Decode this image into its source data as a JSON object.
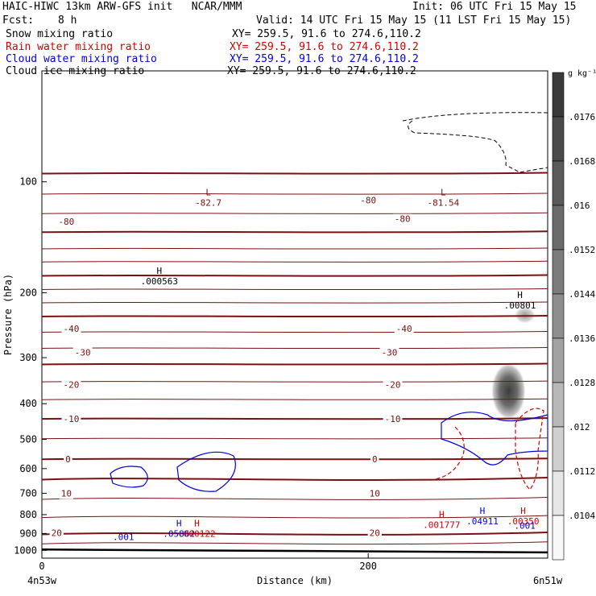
{
  "header": {
    "title_line1": "HAIC-HIWC 13km ARW-GFS init   NCAR/MMM",
    "fcst_label": "Fcst:",
    "fcst_value": "8 h",
    "init": "Init: 06 UTC Fri 15 May 15",
    "valid": "Valid: 14 UTC Fri 15 May 15 (11 LST Fri 15 May 15)",
    "fields": [
      {
        "name": "Snow mixing ratio",
        "xy": "XY= 259.5, 91.6 to 274.6,110.2",
        "color": "#000000"
      },
      {
        "name": "Rain water mixing ratio",
        "xy": "XY= 259.5, 91.6 to 274.6,110.2",
        "color": "#d40000"
      },
      {
        "name": "Cloud water mixing ratio",
        "xy": "XY= 259.5, 91.6 to 274.6,110.2",
        "color": "#0000dd"
      },
      {
        "name": "Cloud ice mixing ratio",
        "xy": "XY= 259.5, 91.6 to 274.6,110.2",
        "color": "#000000"
      }
    ]
  },
  "colors": {
    "temperature": "#7a1010",
    "rain": "#d40000",
    "cloud": "#0000dd",
    "snow": "#000000"
  },
  "chart_data": {
    "type": "heatmap",
    "xlabel": "Distance (km)",
    "ylabel": "Pressure (hPa)",
    "xlim": [
      0,
      310
    ],
    "x_ticks": [
      0,
      200
    ],
    "ylim": [
      1050,
      50
    ],
    "y_ticks": [
      100,
      200,
      300,
      400,
      500,
      600,
      700,
      800,
      900,
      1000
    ],
    "y_scale": "log",
    "x_endpoint_labels": {
      "left": "4n53w",
      "right": "6n51w"
    },
    "colorbar": {
      "unit": "g kg⁻¹",
      "levels": [
        ".0176",
        ".0168",
        ".016",
        ".0152",
        ".0144",
        ".0136",
        ".0128",
        ".012",
        ".0112",
        ".0104"
      ],
      "shades": [
        "#3a3a3a",
        "#4a4a4a",
        "#5a5a5a",
        "#6b6b6b",
        "#7c7c7c",
        "#8e8e8e",
        "#a2a2a2",
        "#b8b8b8",
        "#cfcfcf",
        "#e6e6e6",
        "#f8f8f8"
      ]
    },
    "temperature_contours": [
      {
        "value": "-80",
        "label_positions": [
          [
            15,
            128
          ],
          [
            200,
            112
          ],
          [
            221,
            126
          ]
        ]
      },
      {
        "value": "-40",
        "label_positions": [
          [
            18,
            250
          ],
          [
            222,
            250
          ]
        ]
      },
      {
        "value": "-30",
        "label_positions": [
          [
            25,
            290
          ],
          [
            213,
            290
          ]
        ]
      },
      {
        "value": "-20",
        "label_positions": [
          [
            18,
            355
          ],
          [
            215,
            355
          ]
        ]
      },
      {
        "value": "-10",
        "label_positions": [
          [
            18,
            440
          ],
          [
            215,
            440
          ]
        ]
      },
      {
        "value": "0",
        "label_positions": [
          [
            16,
            566
          ],
          [
            204,
            566
          ]
        ]
      },
      {
        "value": "10",
        "label_positions": [
          [
            15,
            700
          ],
          [
            204,
            700
          ]
        ]
      },
      {
        "value": "20",
        "label_positions": [
          [
            9,
            896
          ],
          [
            204,
            896
          ]
        ]
      }
    ],
    "extrema": [
      {
        "label": "L",
        "value": "-82.7",
        "x": 102,
        "p": 112,
        "color": "#7a1010"
      },
      {
        "label": "L",
        "value": "-81.54",
        "x": 246,
        "p": 112,
        "color": "#7a1010"
      },
      {
        "label": "H",
        "value": ".000563",
        "x": 72,
        "p": 183,
        "color": "#000000"
      },
      {
        "label": "H",
        "value": ".00801",
        "x": 293,
        "p": 213,
        "color": "#000000"
      },
      {
        "label": "H",
        "value": ".05862",
        "x": 84,
        "p": 888,
        "color": "#0000dd"
      },
      {
        "label": "",
        "value": ".001",
        "x": 50,
        "p": 905,
        "color": "#0000dd"
      },
      {
        "label": "H",
        "value": ".000122",
        "x": 95,
        "p": 888,
        "color": "#d40000"
      },
      {
        "label": "H",
        "value": ".001777",
        "x": 245,
        "p": 840,
        "color": "#d40000"
      },
      {
        "label": "H",
        "value": ".04911",
        "x": 270,
        "p": 820,
        "color": "#0000dd"
      },
      {
        "label": "H",
        "value": ".00350",
        "x": 295,
        "p": 820,
        "color": "#d40000"
      },
      {
        "label": "",
        "value": ".001",
        "x": 296,
        "p": 843,
        "color": "#0000dd"
      }
    ],
    "snow_cores": [
      {
        "x": 286,
        "p": 370,
        "intensity": "max"
      },
      {
        "x": 296,
        "p": 230,
        "intensity": "low"
      }
    ]
  }
}
